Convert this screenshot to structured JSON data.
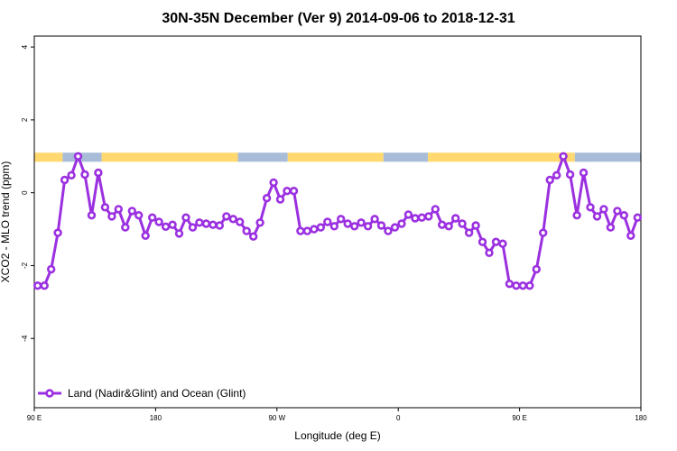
{
  "chart_data": {
    "type": "line",
    "title": "30N-35N December (Ver 9)   2014-09-06 to 2018-12-31",
    "xlabel": "Longitude (deg E)",
    "ylabel": "XCO2 - MLO trend (ppm)",
    "xlim": [
      90,
      540
    ],
    "ylim": [
      -5.9,
      4.3
    ],
    "x_ticks": [
      {
        "value": 90,
        "label": "90 E"
      },
      {
        "value": 180,
        "label": "180"
      },
      {
        "value": 270,
        "label": "90 W"
      },
      {
        "value": 360,
        "label": "0"
      },
      {
        "value": 450,
        "label": "90 E"
      },
      {
        "value": 540,
        "label": "180"
      }
    ],
    "y_ticks": [
      {
        "value": 4,
        "label": "4"
      },
      {
        "value": 2,
        "label": "2"
      },
      {
        "value": 0,
        "label": "0"
      },
      {
        "value": -2,
        "label": "-2"
      },
      {
        "value": -4,
        "label": "-4"
      }
    ],
    "colors": {
      "series": "#9b30e0",
      "land": "#ffd970",
      "ocean": "#a8bcd8",
      "axis": "#000000"
    },
    "land_mask": {
      "y_range": [
        0.85,
        1.1
      ],
      "segments": [
        {
          "type": "land",
          "x0": 90,
          "x1": 111
        },
        {
          "type": "ocean",
          "x0": 111,
          "x1": 140
        },
        {
          "type": "land",
          "x0": 140,
          "x1": 241
        },
        {
          "type": "ocean",
          "x0": 241,
          "x1": 278
        },
        {
          "type": "land",
          "x0": 278,
          "x1": 349
        },
        {
          "type": "ocean",
          "x0": 349,
          "x1": 382
        },
        {
          "type": "land",
          "x0": 382,
          "x1": 491
        },
        {
          "type": "ocean",
          "x0": 491,
          "x1": 540
        }
      ]
    },
    "series": [
      {
        "name": "Land (Nadir&Glint) and Ocean (Glint)",
        "x": [
          92.5,
          97.5,
          102.5,
          107.5,
          112.5,
          117.5,
          122.5,
          127.5,
          132.5,
          137.5,
          142.5,
          147.5,
          152.5,
          157.5,
          162.5,
          167.5,
          172.5,
          177.5,
          182.5,
          187.5,
          192.5,
          197.5,
          202.5,
          207.5,
          212.5,
          217.5,
          222.5,
          227.5,
          232.5,
          237.5,
          242.5,
          247.5,
          252.5,
          257.5,
          262.5,
          267.5,
          272.5,
          277.5,
          282.5,
          287.5,
          292.5,
          297.5,
          302.5,
          307.5,
          312.5,
          317.5,
          322.5,
          327.5,
          332.5,
          337.5,
          342.5,
          347.5,
          352.5,
          357.5,
          362.5,
          367.5,
          372.5,
          377.5,
          382.5,
          387.5,
          392.5,
          397.5,
          402.5,
          407.5,
          412.5,
          417.5,
          422.5,
          427.5,
          432.5,
          437.5,
          442.5,
          447.5,
          452.5,
          457.5,
          462.5,
          467.5,
          472.5,
          477.5,
          482.5,
          487.5,
          492.5,
          497.5,
          502.5,
          507.5,
          512.5,
          517.5,
          522.5,
          527.5,
          532.5,
          537.5
        ],
        "y": [
          -2.55,
          -2.55,
          -2.1,
          -1.1,
          0.35,
          0.48,
          1.0,
          0.5,
          -0.62,
          0.55,
          -0.4,
          -0.65,
          -0.45,
          -0.95,
          -0.5,
          -0.62,
          -1.18,
          -0.68,
          -0.8,
          -0.93,
          -0.88,
          -1.12,
          -0.68,
          -0.95,
          -0.82,
          -0.85,
          -0.88,
          -0.9,
          -0.65,
          -0.72,
          -0.8,
          -1.05,
          -1.2,
          -0.82,
          -0.15,
          0.28,
          -0.18,
          0.05,
          0.05,
          -1.05,
          -1.05,
          -1.0,
          -0.95,
          -0.8,
          -0.92,
          -0.72,
          -0.85,
          -0.92,
          -0.82,
          -0.92,
          -0.72,
          -0.9,
          -1.05,
          -0.95,
          -0.85,
          -0.6,
          -0.7,
          -0.68,
          -0.65,
          -0.45,
          -0.88,
          -0.92,
          -0.7,
          -0.85,
          -1.1,
          -0.9,
          -1.35,
          -1.65,
          -1.35,
          -1.4,
          -2.5,
          -2.55,
          -2.55,
          -2.55,
          -2.1,
          -1.1,
          0.35,
          0.48,
          1.0,
          0.5,
          -0.62,
          0.55,
          -0.4,
          -0.65,
          -0.45,
          -0.95,
          -0.5,
          -0.62,
          -1.18,
          -0.68
        ]
      }
    ],
    "legend": {
      "position": "bottom-left",
      "entries": [
        "Land (Nadir&Glint) and Ocean (Glint)"
      ]
    }
  }
}
